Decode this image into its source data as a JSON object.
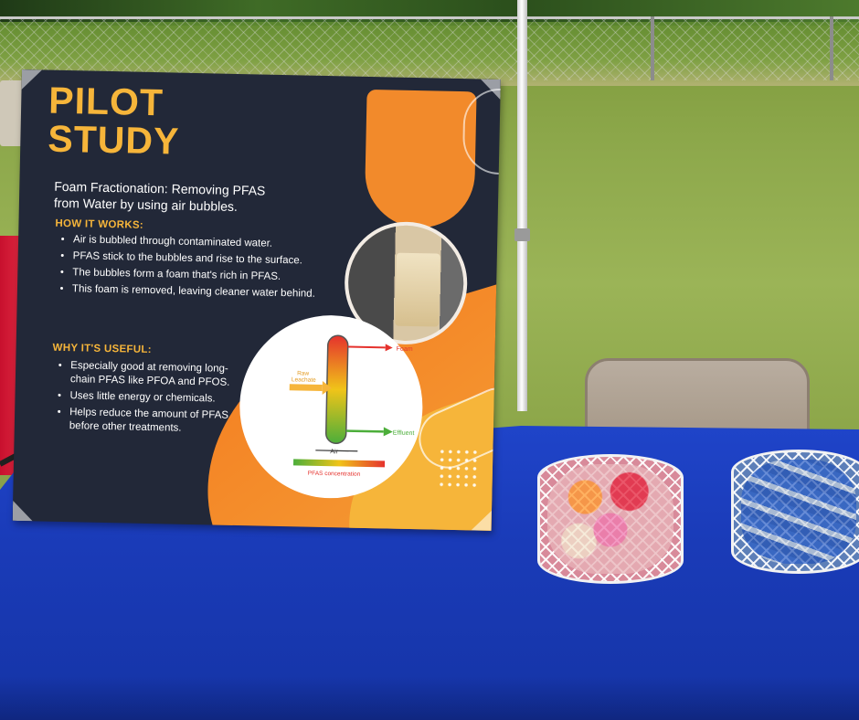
{
  "poster": {
    "title_line1": "PILOT",
    "title_line2": "STUDY",
    "subtitle_line1": "Foam Fractionation: Removing PFAS",
    "subtitle_line2": "from Water by using air bubbles.",
    "how_heading": "HOW IT WORKS:",
    "how_items": [
      "Air is bubbled through contaminated water.",
      "PFAS stick to the bubbles and rise to the surface.",
      "The bubbles form a foam that's rich in PFAS.",
      "This foam is removed, leaving cleaner water behind."
    ],
    "why_heading": "WHY IT'S USEFUL:",
    "why_items": [
      "Especially good at removing long-chain PFAS like PFOA and PFOS.",
      "Uses little energy or chemicals.",
      "Helps reduce the amount of PFAS before other treatments."
    ],
    "diagram": {
      "foam": "Foam",
      "raw_line1": "Raw",
      "raw_line2": "Leachate",
      "air": "Air",
      "effluent": "Effluent",
      "concentration": "PFAS concentration"
    }
  },
  "colors": {
    "poster_bg": "#222838",
    "accent_orange": "#f28a2b",
    "accent_yellow": "#f6b53a",
    "tablecloth": "#1f44c9"
  }
}
